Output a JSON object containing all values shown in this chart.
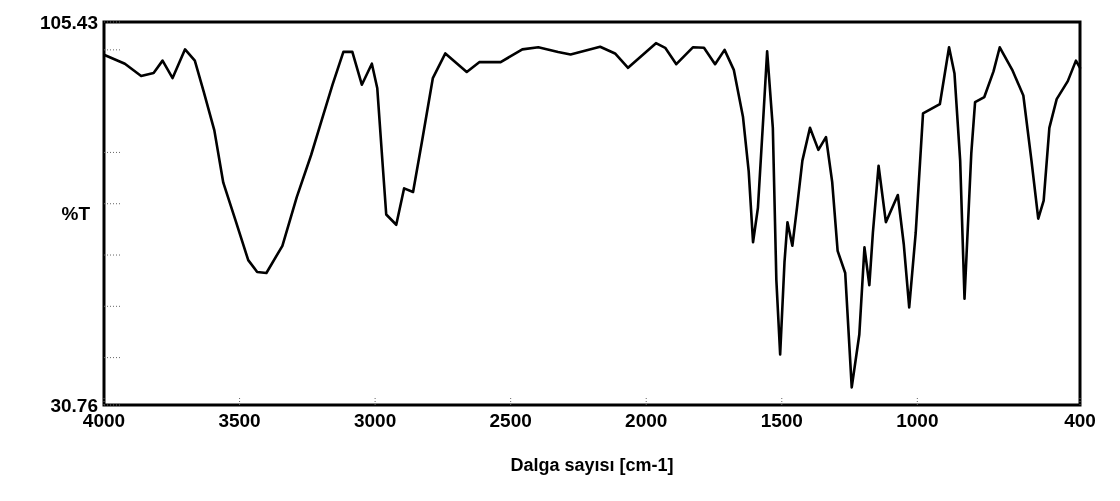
{
  "chart_data": {
    "type": "line",
    "xlabel": "Dalga sayısı [cm-1]",
    "ylabel": "%T",
    "xlim": [
      4000,
      400
    ],
    "ylim": [
      30.76,
      105.43
    ],
    "xticks": [
      4000,
      3500,
      3000,
      2500,
      2000,
      1500,
      1000,
      400
    ],
    "yticks": [
      30.76,
      {
        "value": 40,
        "label": null
      },
      {
        "value": 50,
        "label": null
      },
      {
        "value": 60,
        "label": null
      },
      {
        "value": 70,
        "label": null
      },
      {
        "value": 80,
        "label": null
      },
      {
        "value": 100,
        "label": null
      },
      105.43
    ],
    "grid": false,
    "marker": "none",
    "line_style": "solid",
    "series": [
      {
        "color": "#000000",
        "x": [
          3998,
          3923,
          3863,
          3817,
          3784,
          3747,
          3701,
          3665,
          3632,
          3593,
          3560,
          3514,
          3468,
          3435,
          3401,
          3342,
          3289,
          3236,
          3197,
          3157,
          3117,
          3084,
          3049,
          3012,
          2992,
          2972,
          2959,
          2922,
          2893,
          2860,
          2827,
          2787,
          2741,
          2662,
          2616,
          2537,
          2457,
          2398,
          2325,
          2279,
          2170,
          2115,
          2067,
          1964,
          1930,
          1889,
          1828,
          1787,
          1746,
          1711,
          1677,
          1643,
          1622,
          1606,
          1588,
          1568,
          1554,
          1533,
          1520,
          1506,
          1490,
          1479,
          1461,
          1444,
          1424,
          1396,
          1365,
          1337,
          1314,
          1294,
          1266,
          1242,
          1214,
          1195,
          1177,
          1164,
          1143,
          1116,
          1072,
          1050,
          1030,
          1006,
          979,
          917,
          883,
          863,
          842,
          826,
          801,
          787,
          753,
          719,
          696,
          650,
          609,
          579,
          554,
          534,
          513,
          486,
          445,
          415,
          400
        ],
        "values": [
          99.0,
          97.3,
          94.9,
          95.5,
          97.9,
          94.5,
          100.1,
          97.9,
          91.8,
          84.3,
          74.1,
          66.6,
          59.0,
          56.7,
          56.5,
          61.8,
          71.3,
          79.5,
          86.3,
          93.2,
          99.6,
          99.6,
          93.2,
          97.3,
          92.5,
          77.5,
          67.9,
          65.9,
          73.0,
          72.3,
          82.2,
          94.5,
          99.3,
          95.7,
          97.6,
          97.6,
          100.1,
          100.5,
          99.6,
          99.1,
          100.6,
          99.3,
          96.5,
          101.3,
          100.4,
          97.2,
          100.5,
          100.4,
          97.2,
          100.0,
          96.1,
          86.9,
          76.3,
          62.5,
          69.2,
          86.9,
          99.7,
          84.8,
          55.1,
          40.6,
          58.6,
          66.4,
          61.8,
          69.2,
          78.4,
          84.8,
          80.5,
          83.0,
          74.2,
          60.8,
          56.5,
          34.2,
          44.5,
          61.5,
          54.1,
          64.3,
          77.4,
          66.4,
          71.7,
          62.1,
          49.8,
          64.3,
          87.6,
          89.4,
          100.5,
          95.4,
          78.4,
          51.5,
          79.8,
          89.8,
          90.8,
          95.8,
          100.5,
          96.1,
          91.1,
          78.4,
          67.1,
          70.6,
          84.8,
          90.4,
          93.9,
          97.9,
          96.5
        ]
      }
    ]
  }
}
